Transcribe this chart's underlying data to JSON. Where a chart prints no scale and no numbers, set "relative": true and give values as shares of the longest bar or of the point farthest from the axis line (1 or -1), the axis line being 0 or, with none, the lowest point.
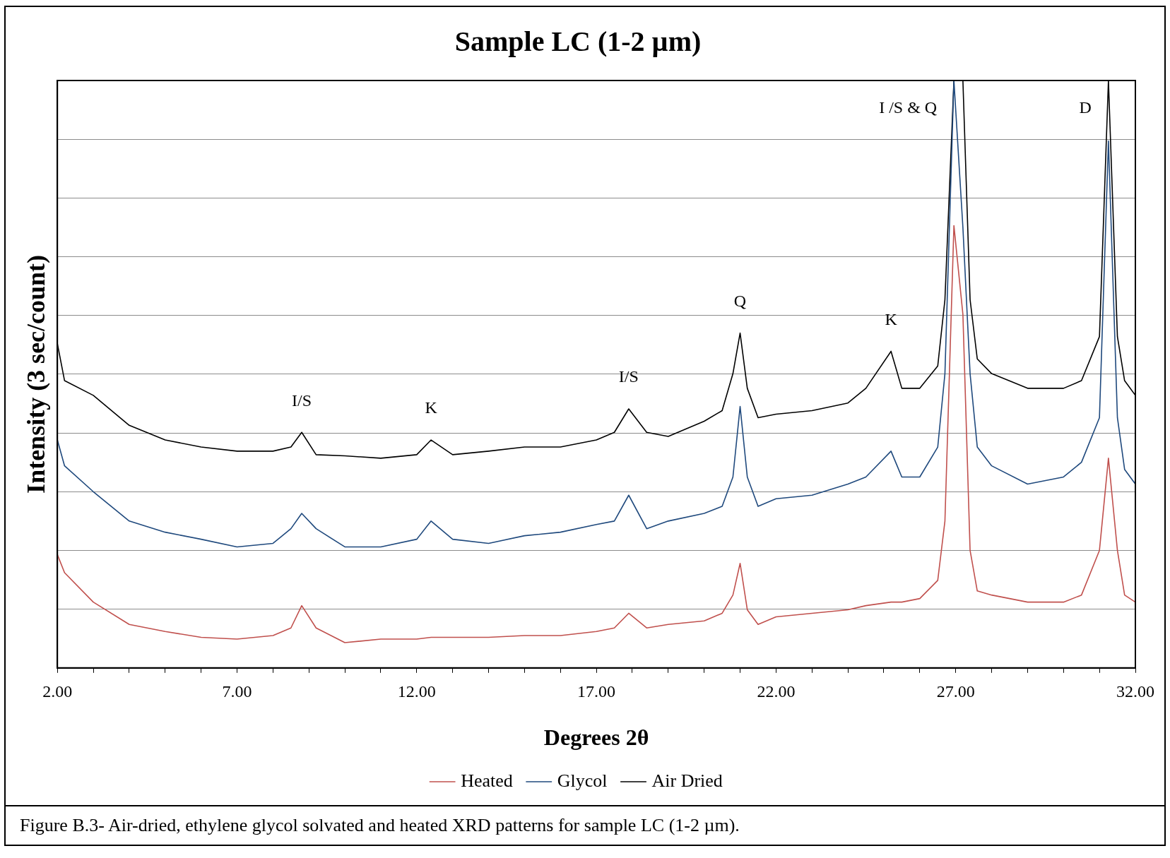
{
  "chart_data": {
    "type": "line",
    "title": "Sample LC (1-2 µm)",
    "xlabel": "Degrees 2θ",
    "ylabel": "Intensity (3 sec/count)",
    "relative": true,
    "grid": "y",
    "legend": "bottom",
    "marker": "none",
    "line_style": "solid",
    "xlim": [
      2,
      32
    ],
    "xticks": [
      {
        "value": 2,
        "label": "2.00"
      },
      {
        "value": 3,
        "label": null
      },
      {
        "value": 4,
        "label": null
      },
      {
        "value": 5,
        "label": null
      },
      {
        "value": 6,
        "label": null
      },
      {
        "value": 7,
        "label": "7.00"
      },
      {
        "value": 8,
        "label": null
      },
      {
        "value": 9,
        "label": null
      },
      {
        "value": 10,
        "label": null
      },
      {
        "value": 11,
        "label": null
      },
      {
        "value": 12,
        "label": "12.00"
      },
      {
        "value": 13,
        "label": null
      },
      {
        "value": 14,
        "label": null
      },
      {
        "value": 15,
        "label": null
      },
      {
        "value": 16,
        "label": null
      },
      {
        "value": 17,
        "label": "17.00"
      },
      {
        "value": 18,
        "label": null
      },
      {
        "value": 19,
        "label": null
      },
      {
        "value": 20,
        "label": null
      },
      {
        "value": 21,
        "label": null
      },
      {
        "value": 22,
        "label": "22.00"
      },
      {
        "value": 23,
        "label": null
      },
      {
        "value": 24,
        "label": null
      },
      {
        "value": 25,
        "label": null
      },
      {
        "value": 26,
        "label": null
      },
      {
        "value": 27,
        "label": "27.00"
      },
      {
        "value": 28,
        "label": null
      },
      {
        "value": 29,
        "label": null
      },
      {
        "value": 30,
        "label": null
      },
      {
        "value": 31,
        "label": null
      },
      {
        "value": 32,
        "label": "32.00"
      }
    ],
    "x": [
      2,
      2.2,
      3,
      4,
      5,
      6,
      7,
      8,
      8.5,
      8.8,
      9.2,
      10,
      11,
      12,
      12.4,
      13,
      14,
      15,
      16,
      17,
      17.5,
      17.9,
      18.4,
      19,
      20,
      20.5,
      20.8,
      21,
      21.2,
      21.5,
      22,
      23,
      24,
      24.5,
      25.2,
      25.5,
      26,
      26.5,
      26.7,
      26.95,
      27.2,
      27.4,
      27.6,
      28,
      29,
      30,
      30.5,
      31,
      31.25,
      31.5,
      31.7,
      32
    ],
    "series": [
      {
        "name": "Heated",
        "color": "#c0504d",
        "values": [
          0.193,
          0.162,
          0.112,
          0.074,
          0.062,
          0.052,
          0.049,
          0.055,
          0.068,
          0.106,
          0.068,
          0.043,
          0.049,
          0.049,
          0.052,
          0.052,
          0.052,
          0.055,
          0.055,
          0.062,
          0.068,
          0.093,
          0.068,
          0.074,
          0.08,
          0.093,
          0.124,
          0.178,
          0.099,
          0.074,
          0.087,
          0.093,
          0.099,
          0.106,
          0.112,
          0.112,
          0.118,
          0.149,
          0.25,
          0.753,
          0.602,
          0.2,
          0.131,
          0.124,
          0.112,
          0.112,
          0.124,
          0.2,
          0.357,
          0.2,
          0.124,
          0.112
        ]
      },
      {
        "name": "Glycol",
        "color": "#1f497d",
        "values": [
          0.388,
          0.344,
          0.3,
          0.25,
          0.231,
          0.219,
          0.206,
          0.212,
          0.237,
          0.263,
          0.237,
          0.206,
          0.206,
          0.219,
          0.25,
          0.219,
          0.212,
          0.225,
          0.231,
          0.244,
          0.25,
          0.294,
          0.237,
          0.25,
          0.263,
          0.275,
          0.325,
          0.445,
          0.325,
          0.275,
          0.288,
          0.294,
          0.313,
          0.325,
          0.369,
          0.325,
          0.325,
          0.376,
          0.501,
          1,
          0.75,
          0.501,
          0.376,
          0.344,
          0.313,
          0.325,
          0.35,
          0.426,
          0.897,
          0.426,
          0.338,
          0.313
        ]
      },
      {
        "name": "Air Dried",
        "color": "#000000",
        "values": [
          0.552,
          0.489,
          0.464,
          0.413,
          0.388,
          0.376,
          0.369,
          0.369,
          0.376,
          0.401,
          0.363,
          0.361,
          0.357,
          0.363,
          0.388,
          0.363,
          0.369,
          0.376,
          0.376,
          0.388,
          0.401,
          0.441,
          0.401,
          0.394,
          0.42,
          0.438,
          0.501,
          0.57,
          0.476,
          0.426,
          0.432,
          0.438,
          0.451,
          0.476,
          0.539,
          0.476,
          0.476,
          0.514,
          0.627,
          1,
          1,
          0.627,
          0.526,
          0.501,
          0.476,
          0.476,
          0.489,
          0.564,
          1,
          0.564,
          0.489,
          0.464
        ]
      }
    ],
    "annotations": [
      {
        "text": "I/S",
        "x": 8.8,
        "y": 0.401
      },
      {
        "text": "K",
        "x": 12.4,
        "y": 0.388
      },
      {
        "text": "I/S",
        "x": 17.9,
        "y": 0.441
      },
      {
        "text": "Q",
        "x": 21,
        "y": 0.57
      },
      {
        "text": "K",
        "x": 25.2,
        "y": 0.539
      },
      {
        "text": "I /S & Q",
        "x": 26.95,
        "y": 1
      },
      {
        "text": "D",
        "x": 31.25,
        "y": 1
      },
      "Figure B.3- Air-dried, ethylene glycol solvated and heated XRD patterns for sample LC (1-2 µm)."
    ]
  }
}
